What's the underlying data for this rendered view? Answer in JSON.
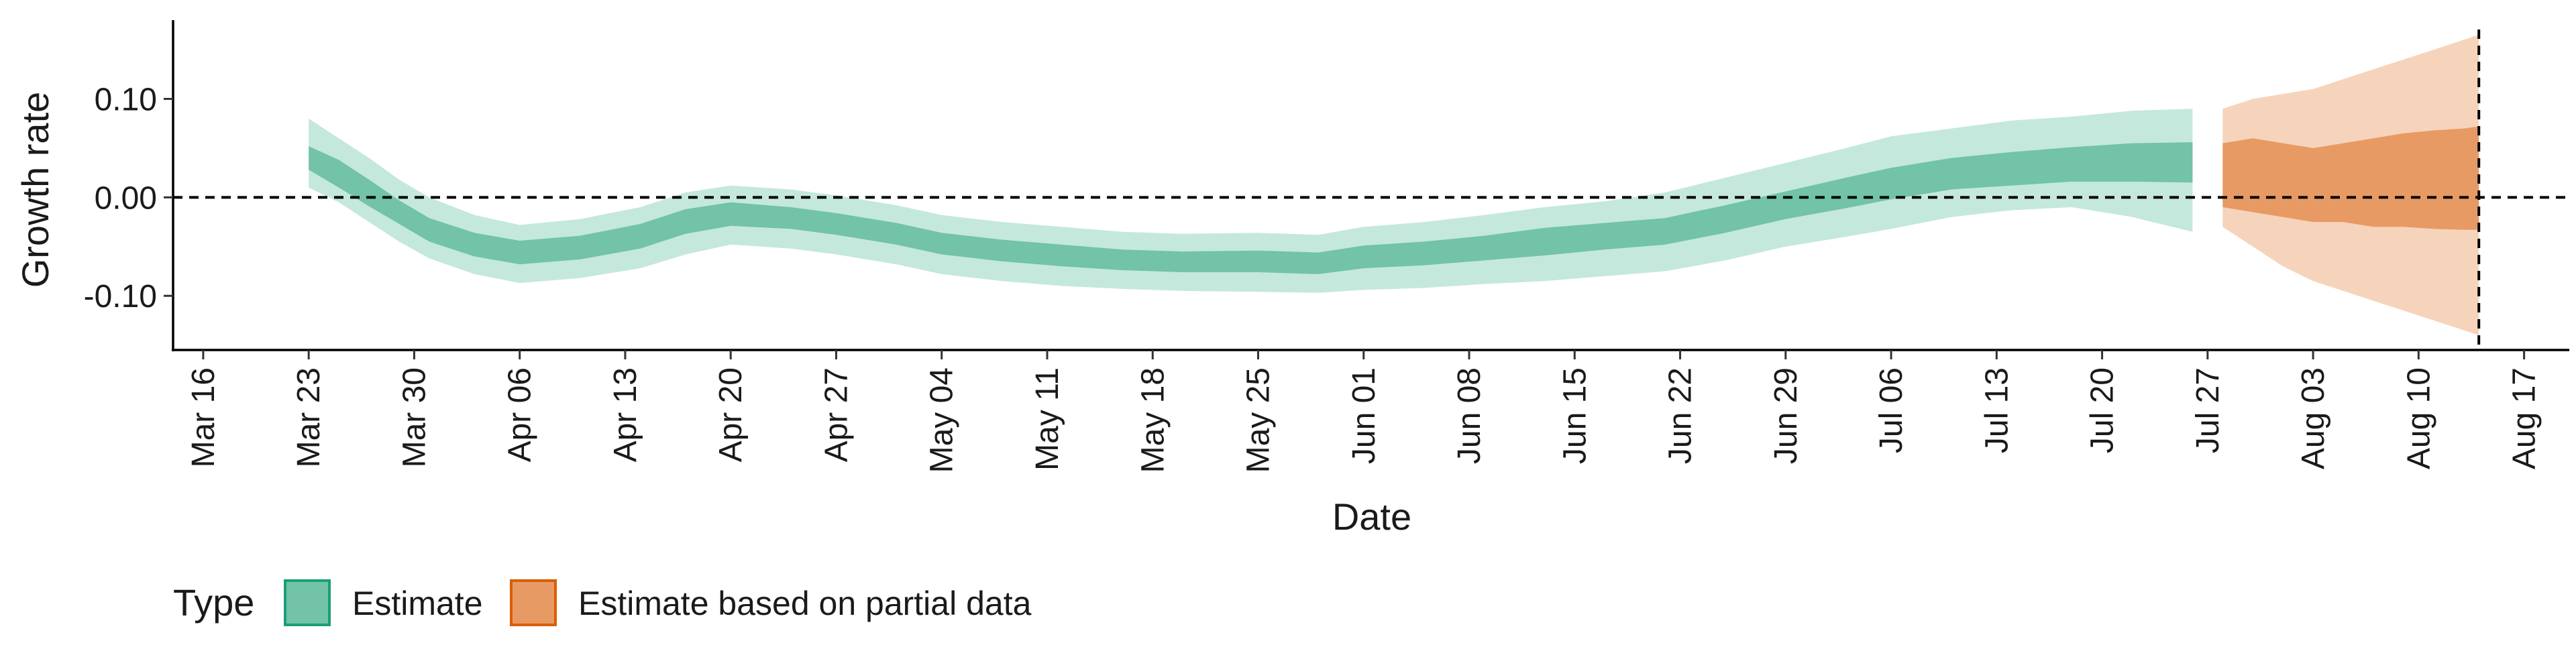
{
  "chart_data": {
    "type": "area",
    "title": "",
    "xlabel": "Date",
    "ylabel": "Growth rate",
    "x_type": "date",
    "xlim": [
      "2020-03-14",
      "2020-08-20"
    ],
    "ylim": [
      -0.155,
      0.18
    ],
    "x_ticks": [
      "2020-03-16",
      "2020-03-23",
      "2020-03-30",
      "2020-04-06",
      "2020-04-13",
      "2020-04-20",
      "2020-04-27",
      "2020-05-04",
      "2020-05-11",
      "2020-05-18",
      "2020-05-25",
      "2020-06-01",
      "2020-06-08",
      "2020-06-15",
      "2020-06-22",
      "2020-06-29",
      "2020-07-06",
      "2020-07-13",
      "2020-07-20",
      "2020-07-27",
      "2020-08-03",
      "2020-08-10",
      "2020-08-17"
    ],
    "x_tick_labels": [
      "Mar 16",
      "Mar 23",
      "Mar 30",
      "Apr 06",
      "Apr 13",
      "Apr 20",
      "Apr 27",
      "May 04",
      "May 11",
      "May 18",
      "May 25",
      "Jun 01",
      "Jun 08",
      "Jun 15",
      "Jun 22",
      "Jun 29",
      "Jul 06",
      "Jul 13",
      "Jul 20",
      "Jul 27",
      "Aug 03",
      "Aug 10",
      "Aug 17"
    ],
    "y_ticks": [
      -0.1,
      0.0,
      0.1
    ],
    "y_tick_labels": [
      "-0.10",
      "0.00",
      "0.10"
    ],
    "reference_lines": [
      {
        "axis": "y",
        "value": 0.0,
        "style": "dashed"
      },
      {
        "axis": "x",
        "value": "2020-08-14",
        "style": "dashed"
      }
    ],
    "legend": {
      "title": "Type",
      "position": "bottom-left",
      "items": [
        {
          "label": "Estimate",
          "color": "#1B9E77"
        },
        {
          "label": "Estimate based on partial data",
          "color": "#D95F02"
        }
      ]
    },
    "series": [
      {
        "name": "Estimate",
        "color": "#1B9E77",
        "x": [
          "2020-03-23",
          "2020-03-25",
          "2020-03-27",
          "2020-03-29",
          "2020-03-31",
          "2020-04-03",
          "2020-04-06",
          "2020-04-10",
          "2020-04-14",
          "2020-04-17",
          "2020-04-20",
          "2020-04-24",
          "2020-04-27",
          "2020-05-01",
          "2020-05-04",
          "2020-05-08",
          "2020-05-12",
          "2020-05-16",
          "2020-05-20",
          "2020-05-25",
          "2020-05-29",
          "2020-06-01",
          "2020-06-05",
          "2020-06-09",
          "2020-06-13",
          "2020-06-17",
          "2020-06-21",
          "2020-06-25",
          "2020-06-29",
          "2020-07-03",
          "2020-07-06",
          "2020-07-10",
          "2020-07-14",
          "2020-07-18",
          "2020-07-22",
          "2020-07-26"
        ],
        "mean": [
          0.042,
          0.025,
          0.005,
          -0.015,
          -0.033,
          -0.048,
          -0.057,
          -0.052,
          -0.04,
          -0.025,
          -0.018,
          -0.022,
          -0.028,
          -0.038,
          -0.048,
          -0.055,
          -0.06,
          -0.065,
          -0.067,
          -0.066,
          -0.068,
          -0.062,
          -0.058,
          -0.052,
          -0.045,
          -0.04,
          -0.035,
          -0.022,
          -0.008,
          0.005,
          0.015,
          0.025,
          0.03,
          0.035,
          0.038,
          0.04
        ],
        "lower_90": [
          0.01,
          -0.005,
          -0.025,
          -0.045,
          -0.062,
          -0.078,
          -0.087,
          -0.082,
          -0.072,
          -0.058,
          -0.048,
          -0.052,
          -0.058,
          -0.068,
          -0.078,
          -0.085,
          -0.09,
          -0.093,
          -0.095,
          -0.096,
          -0.097,
          -0.094,
          -0.092,
          -0.088,
          -0.085,
          -0.08,
          -0.075,
          -0.064,
          -0.05,
          -0.04,
          -0.032,
          -0.02,
          -0.013,
          -0.01,
          -0.02,
          -0.035
        ],
        "lower_50": [
          0.028,
          0.01,
          -0.009,
          -0.027,
          -0.045,
          -0.06,
          -0.068,
          -0.063,
          -0.052,
          -0.037,
          -0.029,
          -0.032,
          -0.038,
          -0.048,
          -0.058,
          -0.065,
          -0.07,
          -0.074,
          -0.076,
          -0.076,
          -0.078,
          -0.072,
          -0.069,
          -0.064,
          -0.059,
          -0.053,
          -0.048,
          -0.036,
          -0.022,
          -0.011,
          -0.002,
          0.008,
          0.012,
          0.016,
          0.016,
          0.015
        ],
        "upper_50": [
          0.052,
          0.038,
          0.018,
          -0.003,
          -0.021,
          -0.036,
          -0.044,
          -0.039,
          -0.027,
          -0.012,
          -0.005,
          -0.01,
          -0.016,
          -0.026,
          -0.036,
          -0.043,
          -0.048,
          -0.053,
          -0.055,
          -0.054,
          -0.056,
          -0.049,
          -0.045,
          -0.039,
          -0.031,
          -0.026,
          -0.021,
          -0.008,
          0.006,
          0.02,
          0.03,
          0.04,
          0.046,
          0.051,
          0.055,
          0.056
        ],
        "upper_90": [
          0.08,
          0.06,
          0.04,
          0.018,
          0.0,
          -0.018,
          -0.028,
          -0.022,
          -0.01,
          0.005,
          0.012,
          0.008,
          0.002,
          -0.008,
          -0.018,
          -0.025,
          -0.03,
          -0.035,
          -0.037,
          -0.036,
          -0.038,
          -0.03,
          -0.025,
          -0.018,
          -0.01,
          -0.004,
          0.005,
          0.02,
          0.035,
          0.05,
          0.062,
          0.07,
          0.078,
          0.082,
          0.088,
          0.09
        ]
      },
      {
        "name": "Estimate based on partial data",
        "color": "#D95F02",
        "x": [
          "2020-07-28",
          "2020-07-30",
          "2020-08-01",
          "2020-08-03",
          "2020-08-05",
          "2020-08-07",
          "2020-08-09",
          "2020-08-11",
          "2020-08-13",
          "2020-08-14"
        ],
        "mean": [
          0.02,
          0.018,
          0.015,
          0.014,
          0.016,
          0.018,
          0.017,
          0.019,
          0.02,
          0.02
        ],
        "lower_90": [
          -0.03,
          -0.05,
          -0.07,
          -0.085,
          -0.095,
          -0.105,
          -0.115,
          -0.125,
          -0.135,
          -0.14
        ],
        "lower_50": [
          -0.01,
          -0.015,
          -0.02,
          -0.025,
          -0.025,
          -0.03,
          -0.03,
          -0.032,
          -0.033,
          -0.033
        ],
        "upper_50": [
          0.055,
          0.06,
          0.055,
          0.05,
          0.055,
          0.06,
          0.065,
          0.068,
          0.07,
          0.072
        ],
        "upper_90": [
          0.09,
          0.1,
          0.105,
          0.11,
          0.12,
          0.13,
          0.14,
          0.15,
          0.16,
          0.165
        ]
      }
    ]
  }
}
